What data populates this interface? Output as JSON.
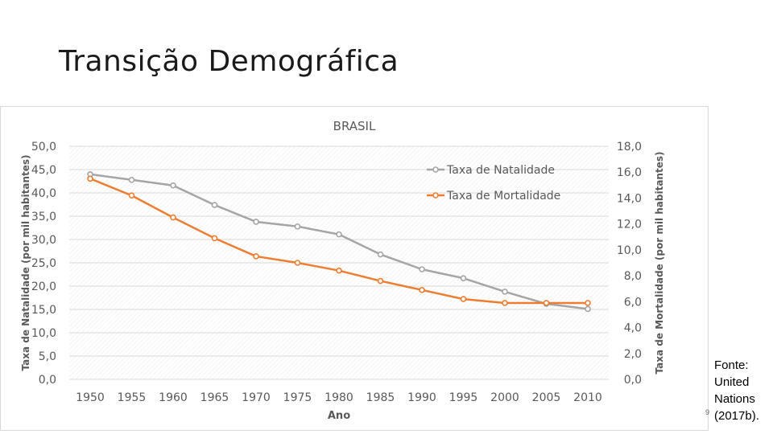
{
  "slide": {
    "title": "Transição Demográfica",
    "source_lines": [
      "Fonte:",
      "United",
      "Nations",
      "(2017b)."
    ],
    "slide_number": "9"
  },
  "colors": {
    "natalidade": "#a5a5a5",
    "mortalidade": "#ed7d31",
    "grid": "#d9d9d9",
    "text": "#595959"
  },
  "chart_data": {
    "type": "line",
    "title": "BRASIL",
    "xlabel": "Ano",
    "ylabel_left": "Taxa de Natalidade (por mil habitantes)",
    "ylabel_right": "Taxa de Mortalidade (por mil habitantes)",
    "x": [
      "1950",
      "1955",
      "1960",
      "1965",
      "1970",
      "1975",
      "1980",
      "1985",
      "1990",
      "1995",
      "2000",
      "2005",
      "2010"
    ],
    "ylim_left": [
      0,
      50
    ],
    "ylim_right": [
      0,
      18
    ],
    "yticks_left": [
      "0,0",
      "5,0",
      "10,0",
      "15,0",
      "20,0",
      "25,0",
      "30,0",
      "35,0",
      "40,0",
      "45,0",
      "50,0"
    ],
    "yticks_right": [
      "0,0",
      "2,0",
      "4,0",
      "6,0",
      "8,0",
      "10,0",
      "12,0",
      "14,0",
      "16,0",
      "18,0"
    ],
    "legend_position": "top-right",
    "series": [
      {
        "name": "Taxa de Natalidade",
        "axis": "left",
        "values": [
          44.0,
          42.8,
          41.6,
          37.4,
          33.8,
          32.8,
          31.1,
          26.8,
          23.6,
          21.7,
          18.8,
          16.2,
          15.1
        ]
      },
      {
        "name": "Taxa de Mortalidade",
        "axis": "right",
        "values": [
          15.5,
          14.2,
          12.5,
          10.9,
          9.5,
          9.0,
          8.4,
          7.6,
          6.9,
          6.2,
          5.9,
          5.9,
          5.9
        ]
      }
    ]
  }
}
